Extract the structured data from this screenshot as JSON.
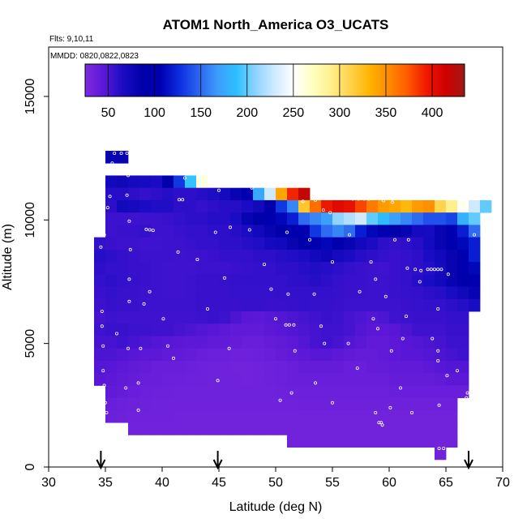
{
  "chart_data": {
    "type": "heatmap",
    "title": "ATOM1 North_America O3_UCATS",
    "flights_label": "Flts: 9,10,11",
    "dates_label": "MMDD: 0820,0822,0823",
    "xlabel": "Latitude (deg N)",
    "ylabel": "Altitude (m)",
    "xlim": [
      30,
      70
    ],
    "ylim": [
      0,
      15000
    ],
    "xticks": [
      "30",
      "35",
      "40",
      "45",
      "50",
      "55",
      "60",
      "65",
      "70"
    ],
    "yticks": [
      "0",
      "5000",
      "10000",
      "15000"
    ],
    "colorbar": {
      "min": 25,
      "max": 435,
      "ticks": [
        "50",
        "100",
        "150",
        "200",
        "250",
        "300",
        "350",
        "400"
      ],
      "colors": [
        "#7f2ae0",
        "#5a17d6",
        "#1a0cc4",
        "#0000a8",
        "#0000b4",
        "#0d30e0",
        "#2c66f0",
        "#3d9cfb",
        "#2cc1ff",
        "#8fd4ff",
        "#cfeaff",
        "#ffffff",
        "#ffffc0",
        "#ffee8a",
        "#ffd24a",
        "#ffb400",
        "#ff8a00",
        "#ff5a00",
        "#f01800",
        "#d00000",
        "#a01818"
      ]
    },
    "arrows_x": [
      34.6,
      44.9,
      67.0
    ],
    "grid_rows": [
      {
        "alt": 12550,
        "lo": 35.0,
        "hi": 37.0,
        "values": [
          80,
          80
        ]
      },
      {
        "alt": 11550,
        "lo": 35.0,
        "hi": 44.0,
        "values": [
          72,
          74,
          70,
          68,
          66,
          90,
          130,
          190,
          260
        ]
      },
      {
        "alt": 11050,
        "lo": 35.0,
        "hi": 53.0,
        "values": [
          62,
          62,
          60,
          58,
          60,
          62,
          60,
          60,
          62,
          65,
          70,
          80,
          100,
          175,
          230,
          340,
          390,
          420
        ]
      },
      {
        "alt": 10550,
        "lo": 35.0,
        "hi": 69.0,
        "values": [
          60,
          72,
          70,
          66,
          64,
          64,
          60,
          60,
          58,
          60,
          62,
          62,
          66,
          72,
          92,
          130,
          160,
          320,
          365,
          395,
          405,
          400,
          380,
          360,
          345,
          340,
          330,
          345,
          350,
          310,
          290,
          255,
          230,
          200
        ]
      },
      {
        "alt": 10050,
        "lo": 35.0,
        "hi": 68.0,
        "values": [
          55,
          55,
          54,
          55,
          55,
          56,
          58,
          60,
          60,
          62,
          62,
          66,
          80,
          90,
          96,
          110,
          120,
          150,
          160,
          170,
          210,
          220,
          230,
          200,
          185,
          170,
          160,
          150,
          140,
          140,
          135,
          180,
          200
        ]
      },
      {
        "alt": 9550,
        "lo": 35.0,
        "hi": 68.0,
        "values": [
          55,
          56,
          56,
          58,
          55,
          55,
          56,
          58,
          58,
          60,
          60,
          62,
          66,
          72,
          80,
          86,
          96,
          100,
          130,
          150,
          160,
          150,
          120,
          110,
          100,
          90,
          80,
          70,
          68,
          80,
          100,
          120,
          150
        ]
      },
      {
        "alt": 9050,
        "lo": 34.0,
        "hi": 68.0,
        "values": [
          58,
          56,
          55,
          55,
          54,
          54,
          55,
          55,
          56,
          58,
          58,
          60,
          60,
          62,
          64,
          70,
          72,
          80,
          90,
          100,
          110,
          96,
          80,
          72,
          66,
          60,
          58,
          60,
          62,
          70,
          80,
          96,
          110,
          120
        ]
      },
      {
        "alt": 8550,
        "lo": 34.0,
        "hi": 68.0,
        "values": [
          62,
          60,
          58,
          56,
          55,
          55,
          55,
          54,
          55,
          55,
          56,
          58,
          58,
          58,
          60,
          60,
          62,
          64,
          66,
          72,
          76,
          70,
          66,
          62,
          60,
          58,
          56,
          58,
          60,
          66,
          72,
          80,
          100,
          120
        ]
      },
      {
        "alt": 8050,
        "lo": 34.0,
        "hi": 68.0,
        "values": [
          60,
          58,
          58,
          56,
          56,
          55,
          54,
          54,
          54,
          55,
          55,
          55,
          56,
          57,
          58,
          58,
          60,
          60,
          62,
          64,
          62,
          60,
          58,
          56,
          55,
          54,
          56,
          58,
          60,
          62,
          70,
          80,
          100,
          110
        ]
      },
      {
        "alt": 7550,
        "lo": 34.0,
        "hi": 68.0,
        "values": [
          58,
          60,
          58,
          57,
          56,
          55,
          54,
          54,
          55,
          56,
          56,
          57,
          58,
          58,
          58,
          58,
          58,
          60,
          60,
          62,
          60,
          58,
          56,
          56,
          55,
          55,
          56,
          58,
          62,
          66,
          72,
          80,
          90,
          100
        ]
      },
      {
        "alt": 7050,
        "lo": 34.0,
        "hi": 68.0,
        "values": [
          56,
          58,
          56,
          56,
          55,
          55,
          54,
          54,
          55,
          56,
          56,
          56,
          57,
          57,
          57,
          57,
          58,
          58,
          58,
          58,
          58,
          57,
          56,
          56,
          55,
          55,
          56,
          57,
          58,
          60,
          62,
          66,
          72,
          80
        ]
      },
      {
        "alt": 6550,
        "lo": 34.0,
        "hi": 68.0,
        "values": [
          55,
          57,
          56,
          56,
          55,
          55,
          55,
          55,
          55,
          56,
          56,
          56,
          56,
          57,
          57,
          56,
          56,
          57,
          58,
          57,
          57,
          56,
          55,
          55,
          55,
          55,
          55,
          56,
          57,
          58,
          58,
          60,
          62,
          66
        ]
      },
      {
        "alt": 6050,
        "lo": 34.0,
        "hi": 67.0,
        "values": [
          52,
          55,
          54,
          54,
          54,
          54,
          54,
          54,
          54,
          55,
          56,
          55,
          50,
          45,
          44,
          46,
          48,
          50,
          52,
          54,
          56,
          55,
          52,
          50,
          48,
          50,
          54,
          55,
          56,
          56,
          56,
          58,
          58
        ]
      },
      {
        "alt": 5550,
        "lo": 34.0,
        "hi": 67.0,
        "values": [
          54,
          56,
          56,
          55,
          55,
          54,
          54,
          52,
          50,
          48,
          46,
          44,
          42,
          42,
          42,
          44,
          46,
          48,
          50,
          52,
          54,
          54,
          52,
          48,
          45,
          44,
          46,
          50,
          54,
          54,
          54,
          56,
          56
        ]
      },
      {
        "alt": 5050,
        "lo": 34.0,
        "hi": 67.0,
        "values": [
          52,
          52,
          54,
          52,
          50,
          48,
          46,
          45,
          44,
          44,
          42,
          42,
          40,
          38,
          38,
          40,
          42,
          44,
          48,
          52,
          54,
          52,
          48,
          45,
          42,
          42,
          44,
          46,
          48,
          50,
          52,
          55,
          55
        ]
      },
      {
        "alt": 4550,
        "lo": 34.0,
        "hi": 67.0,
        "values": [
          50,
          50,
          48,
          46,
          44,
          44,
          42,
          42,
          40,
          38,
          36,
          36,
          35,
          35,
          36,
          38,
          40,
          42,
          44,
          46,
          46,
          44,
          42,
          40,
          40,
          42,
          44,
          46,
          46,
          48,
          50,
          52,
          54
        ]
      },
      {
        "alt": 4050,
        "lo": 34.0,
        "hi": 67.0,
        "values": [
          48,
          46,
          44,
          42,
          40,
          38,
          38,
          38,
          36,
          35,
          34,
          34,
          33,
          33,
          34,
          35,
          36,
          38,
          40,
          40,
          40,
          40,
          38,
          38,
          40,
          40,
          42,
          42,
          42,
          44,
          46,
          48,
          48
        ]
      },
      {
        "alt": 3550,
        "lo": 34.0,
        "hi": 67.0,
        "values": [
          46,
          44,
          42,
          40,
          38,
          37,
          36,
          36,
          35,
          35,
          34,
          34,
          34,
          33,
          34,
          35,
          36,
          37,
          38,
          38,
          38,
          38,
          38,
          38,
          38,
          38,
          40,
          40,
          40,
          40,
          42,
          44,
          44
        ]
      },
      {
        "alt": 3050,
        "lo": 35.0,
        "hi": 67.0,
        "values": [
          42,
          40,
          38,
          36,
          35,
          35,
          34,
          34,
          34,
          34,
          34,
          34,
          34,
          34,
          34,
          35,
          35,
          36,
          36,
          36,
          36,
          36,
          36,
          36,
          36,
          37,
          38,
          38,
          38,
          38,
          38,
          38
        ]
      },
      {
        "alt": 2550,
        "lo": 35.0,
        "hi": 66.0,
        "values": [
          38,
          36,
          35,
          35,
          34,
          34,
          34,
          34,
          34,
          34,
          34,
          34,
          34,
          34,
          34,
          34,
          34,
          35,
          35,
          35,
          35,
          35,
          35,
          35,
          35,
          35,
          35,
          35,
          35,
          35,
          35
        ]
      },
      {
        "alt": 2050,
        "lo": 35.0,
        "hi": 66.0,
        "values": [
          36,
          35,
          34,
          34,
          34,
          34,
          33,
          33,
          33,
          33,
          33,
          33,
          33,
          33,
          33,
          33,
          33,
          33,
          33,
          33,
          33,
          33,
          33,
          33,
          33,
          33,
          33,
          33,
          33,
          33,
          33
        ]
      },
      {
        "alt": 1550,
        "lo": 37.0,
        "hi": 66.0,
        "values": [
          33,
          33,
          33,
          33,
          33,
          33,
          33,
          33,
          33,
          33,
          33,
          33,
          33,
          33,
          33,
          33,
          33,
          33,
          33,
          33,
          33,
          33,
          33,
          33,
          33,
          33,
          33,
          33,
          33
        ]
      },
      {
        "alt": 1050,
        "lo": 51.0,
        "hi": 66.0,
        "values": [
          33,
          33,
          33,
          33,
          33,
          33,
          33,
          33,
          33,
          33,
          33,
          33,
          33,
          33,
          33
        ]
      },
      {
        "alt": 550,
        "lo": 64.0,
        "hi": 65.0,
        "values": [
          33
        ]
      }
    ],
    "sample_points": [
      [
        35.8,
        12700
      ],
      [
        36.4,
        12700
      ],
      [
        36.9,
        12700
      ],
      [
        35.6,
        12300
      ],
      [
        37.0,
        12200
      ],
      [
        37.0,
        11800
      ],
      [
        43.2,
        11800
      ],
      [
        42.0,
        11700
      ],
      [
        47.0,
        11500
      ],
      [
        47.9,
        11300
      ],
      [
        52.1,
        11600
      ],
      [
        52.8,
        11600
      ],
      [
        35.4,
        10950
      ],
      [
        36.9,
        11000
      ],
      [
        45.0,
        11200
      ],
      [
        41.5,
        10820
      ],
      [
        41.8,
        10820
      ],
      [
        52.4,
        10750
      ],
      [
        53.5,
        10800
      ],
      [
        56.8,
        10850
      ],
      [
        57.3,
        10850
      ],
      [
        57.8,
        10850
      ],
      [
        58.2,
        10850
      ],
      [
        59.5,
        10780
      ],
      [
        60.3,
        10720
      ],
      [
        35.2,
        10500
      ],
      [
        54.2,
        10400
      ],
      [
        54.8,
        10300
      ],
      [
        37.1,
        9950
      ],
      [
        38.6,
        9620
      ],
      [
        38.9,
        9600
      ],
      [
        39.2,
        9580
      ],
      [
        34.9,
        9400
      ],
      [
        44.7,
        9500
      ],
      [
        46.0,
        9700
      ],
      [
        47.7,
        9600
      ],
      [
        51.0,
        9500
      ],
      [
        53.0,
        9200
      ],
      [
        56.5,
        9400
      ],
      [
        60.5,
        9200
      ],
      [
        61.7,
        9200
      ],
      [
        67.5,
        9400
      ],
      [
        34.6,
        8900
      ],
      [
        37.2,
        8800
      ],
      [
        41.4,
        8700
      ],
      [
        43.1,
        8400
      ],
      [
        49.0,
        8200
      ],
      [
        55.0,
        8300
      ],
      [
        58.4,
        8300
      ],
      [
        61.6,
        8050
      ],
      [
        62.3,
        8000
      ],
      [
        62.8,
        7950
      ],
      [
        63.4,
        8000
      ],
      [
        63.7,
        8000
      ],
      [
        64.0,
        8000
      ],
      [
        64.3,
        8000
      ],
      [
        64.6,
        8000
      ],
      [
        65.2,
        7800
      ],
      [
        37.1,
        7600
      ],
      [
        45.5,
        7650
      ],
      [
        58.8,
        7600
      ],
      [
        62.7,
        7500
      ],
      [
        38.9,
        7100
      ],
      [
        49.6,
        7200
      ],
      [
        51.1,
        7000
      ],
      [
        53.4,
        7000
      ],
      [
        57.4,
        7100
      ],
      [
        59.7,
        6900
      ],
      [
        37.1,
        6700
      ],
      [
        38.4,
        6600
      ],
      [
        44.0,
        6400
      ],
      [
        64.3,
        6400
      ],
      [
        34.7,
        6300
      ],
      [
        40.1,
        6000
      ],
      [
        50.0,
        6000
      ],
      [
        58.6,
        6000
      ],
      [
        61.5,
        6100
      ],
      [
        67.6,
        6000
      ],
      [
        34.7,
        5700
      ],
      [
        50.9,
        5750
      ],
      [
        51.2,
        5750
      ],
      [
        51.6,
        5750
      ],
      [
        54.0,
        5700
      ],
      [
        59.0,
        5600
      ],
      [
        36.0,
        5400
      ],
      [
        54.3,
        5000
      ],
      [
        56.4,
        5000
      ],
      [
        61.2,
        5200
      ],
      [
        63.8,
        5200
      ],
      [
        34.8,
        4900
      ],
      [
        37.0,
        4800
      ],
      [
        38.1,
        4800
      ],
      [
        40.5,
        4900
      ],
      [
        45.9,
        4800
      ],
      [
        51.7,
        4700
      ],
      [
        60.2,
        4700
      ],
      [
        64.3,
        4700
      ],
      [
        41.0,
        4400
      ],
      [
        64.3,
        4300
      ],
      [
        34.8,
        3900
      ],
      [
        57.2,
        4000
      ],
      [
        66.0,
        3900
      ],
      [
        65.1,
        3700
      ],
      [
        37.9,
        3400
      ],
      [
        44.9,
        3500
      ],
      [
        53.5,
        3400
      ],
      [
        34.9,
        3300
      ],
      [
        36.8,
        3200
      ],
      [
        51.4,
        3000
      ],
      [
        61.0,
        3200
      ],
      [
        66.9,
        3000
      ],
      [
        66.8,
        2800
      ],
      [
        35.0,
        2600
      ],
      [
        37.9,
        2300
      ],
      [
        50.4,
        2700
      ],
      [
        55.0,
        2600
      ],
      [
        60.1,
        2400
      ],
      [
        64.4,
        2500
      ],
      [
        62.0,
        2200
      ],
      [
        35.1,
        2200
      ],
      [
        58.8,
        2200
      ],
      [
        59.1,
        1800
      ],
      [
        59.3,
        1800
      ],
      [
        59.4,
        1700
      ],
      [
        64.4,
        750
      ],
      [
        64.8,
        750
      ]
    ]
  }
}
